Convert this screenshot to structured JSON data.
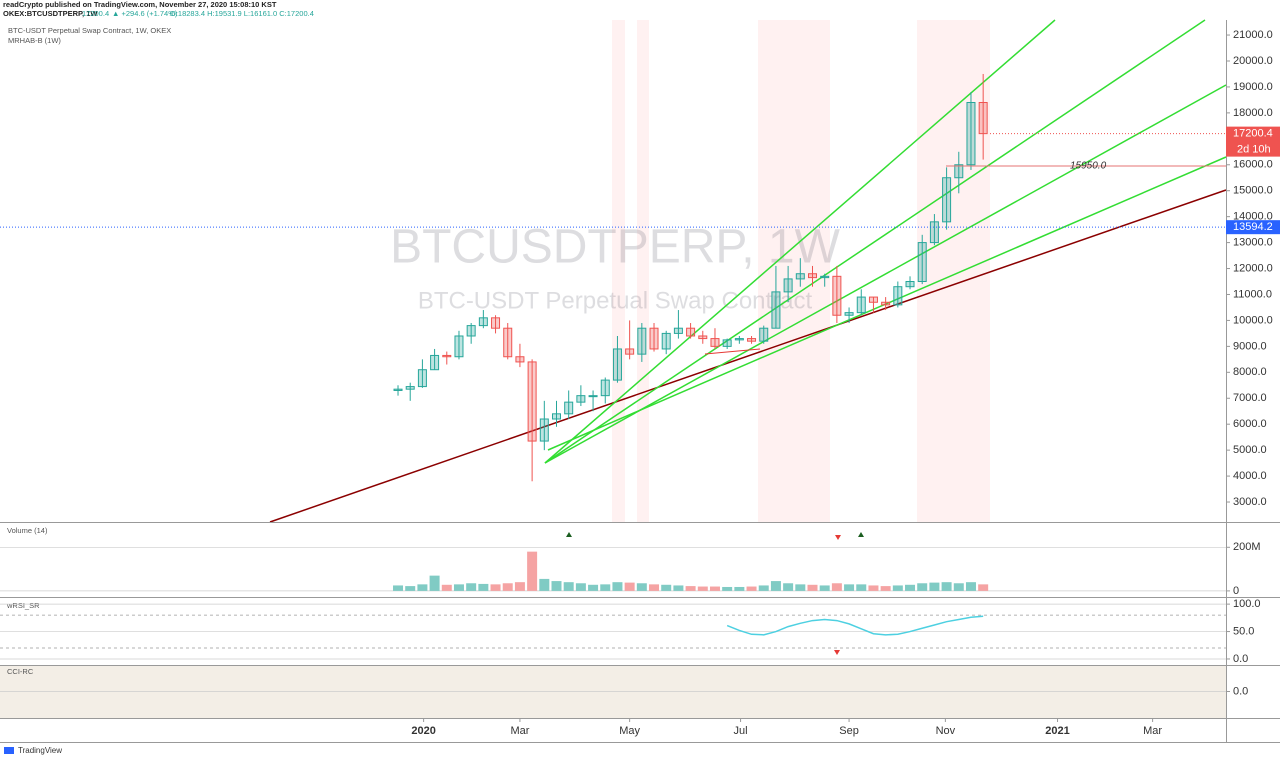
{
  "header": {
    "publisher": "readCrypto published on TradingView.com, November 27, 2020 15:08:10 KST",
    "symbol": "OKEX:BTCUSDTPERP, 1W",
    "last": "17200.4",
    "change": "▲ +294.6 (+1.74%)",
    "ohlc": "O:18283.4 H:19531.9 L:16161.0 C:17200.4"
  },
  "footer": "TradingView",
  "chart_data": [
    {
      "type": "candlestick",
      "title": "BTC-USDT Perpetual Swap Contract, 1W, OKEX",
      "indicator": "MRHAB-B (1W)",
      "watermark": [
        "BTCUSDTPERP, 1W",
        "BTC-USDT Perpetual Swap Contract"
      ],
      "up_color": "#26a69a",
      "down_color": "#ef5350",
      "open": [
        7300,
        7350,
        7450,
        8100,
        8650,
        8600,
        9400,
        9800,
        10100,
        9700,
        8600,
        8400,
        5350,
        6200,
        6400,
        6850,
        7100,
        7100,
        7700,
        8900,
        8700,
        9700,
        8900,
        9500,
        9700,
        9400,
        9300,
        9000,
        9250,
        9300,
        9200,
        9700,
        11100,
        11600,
        11800,
        11650,
        11700,
        10200,
        10300,
        10900,
        10700,
        10600,
        11300,
        11500,
        13000,
        13800,
        15500,
        16000,
        18400
      ],
      "high": [
        7500,
        7600,
        8500,
        8900,
        8800,
        9600,
        9900,
        10400,
        10200,
        9900,
        9100,
        8500,
        6900,
        6900,
        7300,
        7500,
        7300,
        7800,
        9400,
        10000,
        9900,
        9900,
        9600,
        10400,
        9900,
        9600,
        9700,
        9300,
        9400,
        9400,
        9800,
        12100,
        12100,
        12400,
        12100,
        11800,
        12100,
        10500,
        11200,
        10900,
        10900,
        11500,
        11700,
        13300,
        14100,
        15900,
        16500,
        18800,
        19500
      ],
      "low": [
        7100,
        6900,
        7400,
        8100,
        8300,
        8500,
        9100,
        9700,
        9500,
        8500,
        8200,
        3800,
        5000,
        5900,
        6200,
        6700,
        6500,
        6800,
        7600,
        8500,
        8400,
        8800,
        8700,
        9300,
        9300,
        9100,
        8900,
        8900,
        9100,
        9100,
        9100,
        9700,
        10700,
        11300,
        11300,
        11300,
        9900,
        9900,
        10200,
        10300,
        10400,
        10500,
        11200,
        11400,
        12900,
        13500,
        14900,
        15800,
        16200
      ],
      "close": [
        7350,
        7450,
        8100,
        8650,
        8600,
        9400,
        9800,
        10100,
        9700,
        8600,
        8400,
        5350,
        6200,
        6400,
        6850,
        7100,
        7100,
        7700,
        8900,
        8700,
        9700,
        8900,
        9500,
        9700,
        9400,
        9300,
        9000,
        9250,
        9300,
        9200,
        9700,
        11100,
        11600,
        11800,
        11650,
        11700,
        10200,
        10300,
        10900,
        10700,
        10600,
        11300,
        11500,
        13000,
        13800,
        15500,
        16000,
        18400,
        17200
      ],
      "xlim": [
        -32.65,
        67.92
      ],
      "xticks": [
        {
          "value": 2.1,
          "label": "2020"
        },
        {
          "value": 10.0,
          "label": "Mar"
        },
        {
          "value": 19.0,
          "label": "May"
        },
        {
          "value": 28.1,
          "label": "Jul"
        },
        {
          "value": 37.0,
          "label": "Sep"
        },
        {
          "value": 44.9,
          "label": "Nov"
        },
        {
          "value": 54.1,
          "label": "2021"
        },
        {
          "value": 61.9,
          "label": "Mar"
        }
      ],
      "ylim": [
        2230,
        21580
      ],
      "yticks": [
        {
          "value": 3000,
          "label": "3000.0"
        },
        {
          "value": 4000,
          "label": "4000.0"
        },
        {
          "value": 5000,
          "label": "5000.0"
        },
        {
          "value": 6000,
          "label": "6000.0"
        },
        {
          "value": 7000,
          "label": "7000.0"
        },
        {
          "value": 8000,
          "label": "8000.0"
        },
        {
          "value": 9000,
          "label": "9000.0"
        },
        {
          "value": 10000,
          "label": "10000.0"
        },
        {
          "value": 11000,
          "label": "11000.0"
        },
        {
          "value": 12000,
          "label": "12000.0"
        },
        {
          "value": 13000,
          "label": "13000.0"
        },
        {
          "value": 14000,
          "label": "14000.0"
        },
        {
          "value": 15000,
          "label": "15000.0"
        },
        {
          "value": 16000,
          "label": "16000.0"
        },
        {
          "value": 17000,
          "label": "17000.0"
        },
        {
          "value": 18000,
          "label": "18000.0"
        },
        {
          "value": 19000,
          "label": "19000.0"
        },
        {
          "value": 20000,
          "label": "20000.0"
        },
        {
          "value": 21000,
          "label": "21000.0"
        }
      ],
      "last_price": {
        "value": 17200.4,
        "label": "17200.4"
      },
      "countdown": "2d 10h",
      "crosshair": {
        "value": 13594.2,
        "label": "13594.2"
      },
      "levels": [
        {
          "value": 15950,
          "label": "15950.0"
        }
      ]
    },
    {
      "type": "bar",
      "title": "Volume (14)",
      "up_color": "#80cbc4",
      "down_color": "#f5a3a3",
      "values": [
        25,
        22,
        30,
        70,
        28,
        30,
        35,
        32,
        30,
        35,
        40,
        180,
        55,
        45,
        40,
        35,
        28,
        30,
        40,
        38,
        35,
        30,
        28,
        25,
        22,
        20,
        20,
        18,
        18,
        20,
        25,
        45,
        35,
        30,
        28,
        25,
        35,
        30,
        30,
        25,
        22,
        25,
        28,
        35,
        38,
        40,
        35,
        40,
        30
      ],
      "ylim": [
        -28,
        316
      ],
      "yticks": [
        {
          "value": 200,
          "label": "200M"
        },
        0
      ]
    },
    {
      "type": "line",
      "title": "wRSI_SR",
      "series": [
        {
          "color": "#4dd0e1",
          "values": [
            null,
            null,
            null,
            null,
            null,
            null,
            null,
            null,
            null,
            null,
            null,
            null,
            null,
            null,
            null,
            null,
            null,
            null,
            null,
            null,
            null,
            null,
            null,
            null,
            null,
            null,
            null,
            61,
            52,
            45,
            44,
            50,
            59,
            65,
            70,
            72,
            70,
            64,
            55,
            46,
            44,
            45,
            50,
            56,
            62,
            68,
            72,
            76,
            78
          ]
        }
      ],
      "levels": [
        80,
        20
      ],
      "ylim": [
        -11,
        113
      ],
      "yticks": [
        {
          "value": 100,
          "label": "100.0"
        },
        {
          "value": 50,
          "label": "50.0"
        },
        {
          "value": 0,
          "label": "0.0"
        }
      ]
    },
    {
      "type": "line",
      "title": "CCI-RC",
      "series": [],
      "ylim": [
        -100,
        100
      ],
      "yticks": [
        {
          "value": 0,
          "label": "0.0"
        }
      ]
    }
  ]
}
